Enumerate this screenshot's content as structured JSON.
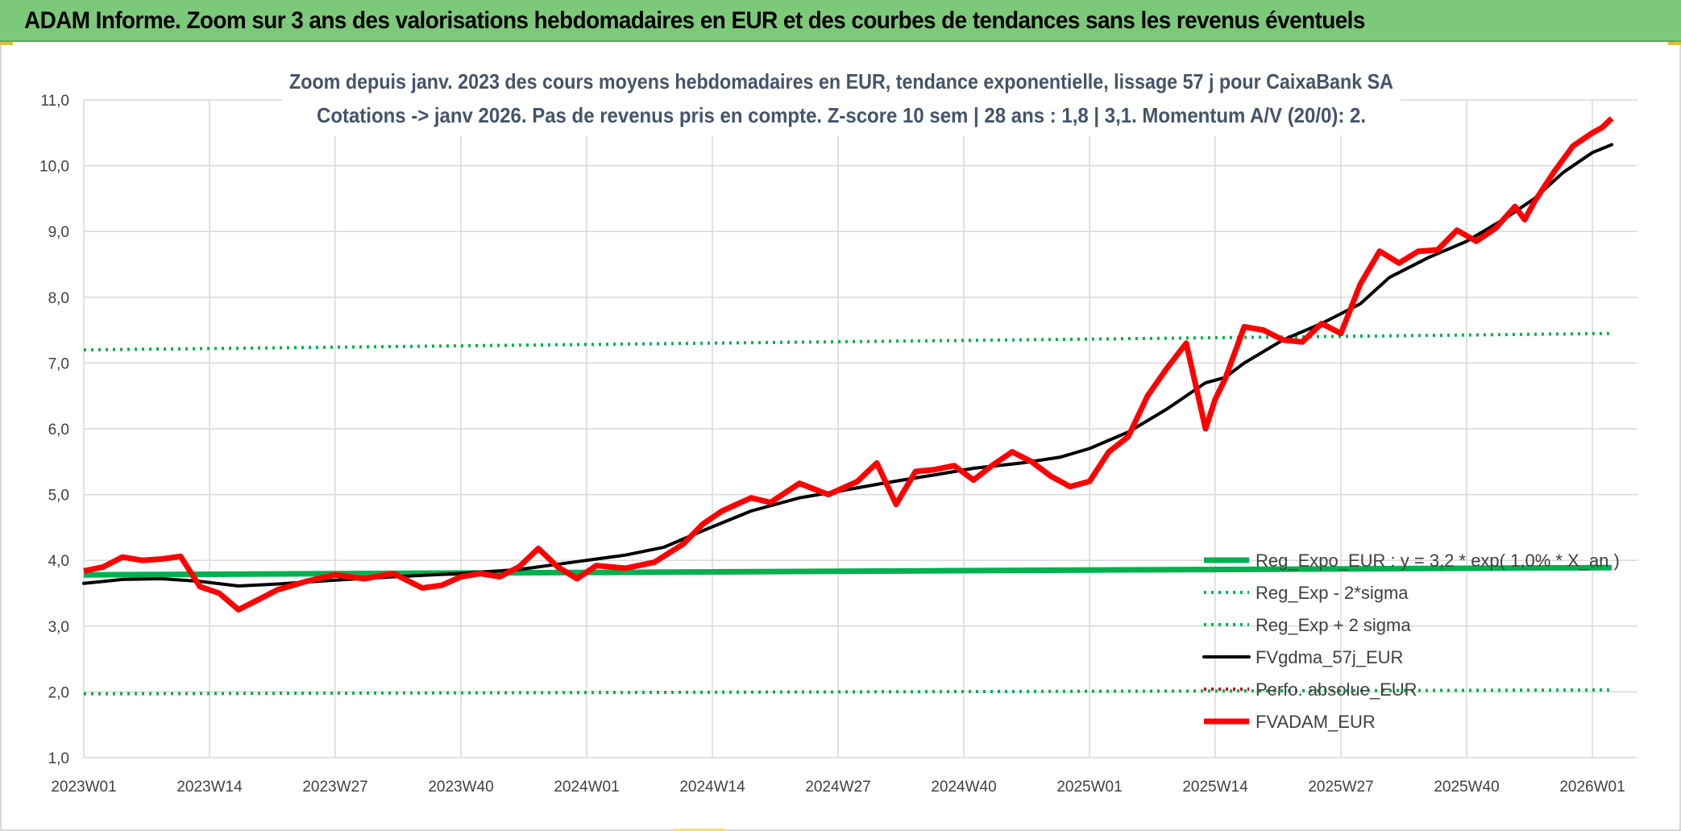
{
  "header": {
    "title": "ADAM Informe. Zoom sur 3 ans des valorisations hebdomadaires en EUR et des courbes de tendances sans les revenus éventuels"
  },
  "chart_data": {
    "type": "line",
    "title": "Zoom depuis janv. 2023 des cours moyens hebdomadaires en EUR, tendance exponentielle, lissage 57 j pour CaixaBank SA",
    "subtitle": "Cotations -> janv 2026. Pas de revenus pris en compte. Z-score 10 sem | 28 ans : 1,8 | 3,1. Momentum A/V (20/0): 2.",
    "xlabel": "",
    "ylabel": "",
    "ylim": [
      1.0,
      11.0
    ],
    "yticks": [
      "1,0",
      "2,0",
      "3,0",
      "4,0",
      "5,0",
      "6,0",
      "7,0",
      "8,0",
      "9,0",
      "10,0",
      "11,0"
    ],
    "xticks": [
      "2023W01",
      "2023W14",
      "2023W27",
      "2023W40",
      "2024W01",
      "2024W14",
      "2024W27",
      "2024W40",
      "2025W01",
      "2025W14",
      "2025W27",
      "2025W40",
      "2026W01"
    ],
    "x_range": [
      "2023W01",
      "2026W03"
    ],
    "grid": true,
    "legend_position": "bottom-right",
    "series": [
      {
        "name": "Reg_Expo_EUR : y = 3,2 * exp( 1,0% * X_an )",
        "style": "solid-thick",
        "color": "#00b050",
        "x": [
          "2023W01",
          "2026W03"
        ],
        "y": [
          3.78,
          3.89
        ]
      },
      {
        "name": "Reg_Exp - 2*sigma",
        "style": "dotted",
        "color": "#00b050",
        "x": [
          "2023W01",
          "2026W03"
        ],
        "y": [
          1.97,
          2.03
        ]
      },
      {
        "name": "Reg_Exp + 2 sigma",
        "style": "dotted",
        "color": "#00b050",
        "x": [
          "2023W01",
          "2026W03"
        ],
        "y": [
          7.2,
          7.45
        ]
      },
      {
        "name": "FVgdma_57j_EUR",
        "style": "solid",
        "color": "#000000",
        "x": [
          "2023W01",
          "2023W05",
          "2023W09",
          "2023W13",
          "2023W17",
          "2023W21",
          "2023W27",
          "2023W33",
          "2023W40",
          "2023W46",
          "2023W52",
          "2024W05",
          "2024W09",
          "2024W13",
          "2024W18",
          "2024W23",
          "2024W27",
          "2024W32",
          "2024W37",
          "2024W41",
          "2024W46",
          "2024W50",
          "2025W01",
          "2025W05",
          "2025W09",
          "2025W13",
          "2025W15",
          "2025W17",
          "2025W21",
          "2025W25",
          "2025W29",
          "2025W32",
          "2025W36",
          "2025W40",
          "2025W44",
          "2025W47",
          "2025W50",
          "2026W01",
          "2026W03"
        ],
        "y": [
          3.65,
          3.71,
          3.72,
          3.68,
          3.61,
          3.64,
          3.7,
          3.75,
          3.8,
          3.86,
          3.98,
          4.08,
          4.2,
          4.45,
          4.75,
          4.95,
          5.05,
          5.18,
          5.3,
          5.4,
          5.48,
          5.57,
          5.7,
          5.95,
          6.3,
          6.7,
          6.78,
          7.0,
          7.35,
          7.6,
          7.9,
          8.3,
          8.6,
          8.85,
          9.2,
          9.5,
          9.9,
          10.2,
          10.32
        ]
      },
      {
        "name": "Perfo. absolue_EUR",
        "style": "dotted",
        "color": "#c00000",
        "x": [],
        "y": []
      },
      {
        "name": "FVADAM_EUR",
        "style": "solid-thick",
        "color": "#ff0000",
        "x": [
          "2023W01",
          "2023W03",
          "2023W05",
          "2023W07",
          "2023W09",
          "2023W11",
          "2023W13",
          "2023W15",
          "2023W17",
          "2023W19",
          "2023W21",
          "2023W24",
          "2023W27",
          "2023W30",
          "2023W33",
          "2023W36",
          "2023W38",
          "2023W40",
          "2023W42",
          "2023W44",
          "2023W46",
          "2023W48",
          "2023W50",
          "2023W52",
          "2024W02",
          "2024W05",
          "2024W08",
          "2024W11",
          "2024W13",
          "2024W15",
          "2024W18",
          "2024W20",
          "2024W23",
          "2024W26",
          "2024W29",
          "2024W31",
          "2024W33",
          "2024W35",
          "2024W37",
          "2024W39",
          "2024W41",
          "2024W43",
          "2024W45",
          "2024W47",
          "2024W49",
          "2024W51",
          "2025W01",
          "2025W03",
          "2025W05",
          "2025W07",
          "2025W09",
          "2025W11",
          "2025W13",
          "2025W14",
          "2025W15",
          "2025W17",
          "2025W19",
          "2025W21",
          "2025W23",
          "2025W25",
          "2025W27",
          "2025W29",
          "2025W31",
          "2025W33",
          "2025W35",
          "2025W37",
          "2025W39",
          "2025W41",
          "2025W43",
          "2025W45",
          "2025W46",
          "2025W47",
          "2025W49",
          "2025W51",
          "2026W01",
          "2026W02",
          "2026W03"
        ],
        "y": [
          3.84,
          3.9,
          4.05,
          4.0,
          4.02,
          4.06,
          3.6,
          3.5,
          3.25,
          3.4,
          3.55,
          3.68,
          3.78,
          3.72,
          3.8,
          3.58,
          3.62,
          3.75,
          3.8,
          3.75,
          3.9,
          4.18,
          3.9,
          3.72,
          3.92,
          3.88,
          3.97,
          4.25,
          4.55,
          4.75,
          4.95,
          4.88,
          5.17,
          5.0,
          5.2,
          5.48,
          4.85,
          5.35,
          5.38,
          5.44,
          5.22,
          5.45,
          5.65,
          5.5,
          5.28,
          5.12,
          5.2,
          5.65,
          5.88,
          6.5,
          6.92,
          7.3,
          6.0,
          6.45,
          6.75,
          7.55,
          7.5,
          7.35,
          7.32,
          7.6,
          7.45,
          8.2,
          8.7,
          8.52,
          8.7,
          8.72,
          9.02,
          8.85,
          9.05,
          9.38,
          9.18,
          9.45,
          9.9,
          10.3,
          10.5,
          10.58,
          10.72
        ]
      }
    ]
  }
}
